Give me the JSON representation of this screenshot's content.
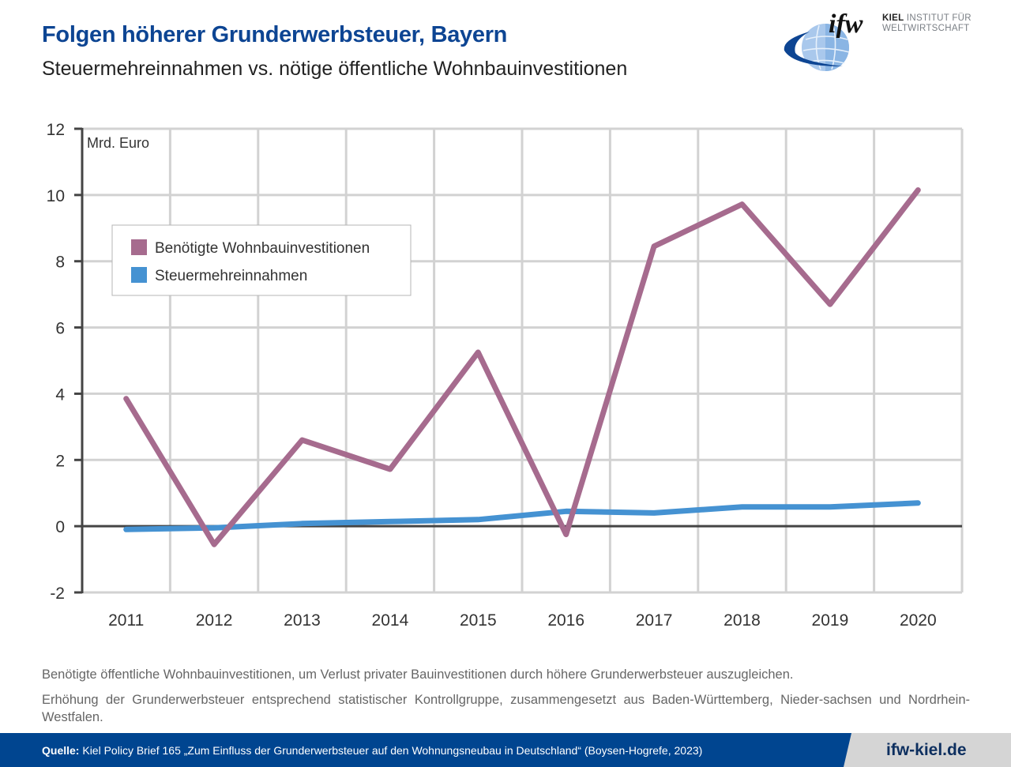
{
  "header": {
    "title": "Folgen höherer Grunderwerbsteuer, Bayern",
    "subtitle": "Steuermehreinnahmen vs. nötige öffentliche Wohnbauinvestitionen"
  },
  "logo": {
    "mark": "ifw",
    "line1_bold": "KIEL",
    "line1_rest": " INSTITUT FÜR",
    "line2": "WELTWIRTSCHAFT"
  },
  "chart_data": {
    "type": "line",
    "title": "Folgen höherer Grunderwerbsteuer, Bayern",
    "subtitle": "Steuermehreinnahmen vs. nötige öffentliche Wohnbauinvestitionen",
    "ylabel": "Mrd. Euro",
    "xlabel": "",
    "x": [
      "2011",
      "2012",
      "2013",
      "2014",
      "2015",
      "2016",
      "2017",
      "2018",
      "2019",
      "2020"
    ],
    "ylim": [
      -2,
      12
    ],
    "yticks": [
      -2,
      0,
      2,
      4,
      6,
      8,
      10,
      12
    ],
    "grid": true,
    "legend_position": "top-left",
    "series": [
      {
        "name": "Benötigte Wohnbauinvestitionen",
        "color": "#a66b8e",
        "values": [
          3.85,
          -0.55,
          2.6,
          1.72,
          5.25,
          -0.25,
          8.45,
          9.72,
          6.7,
          10.15
        ]
      },
      {
        "name": "Steuermehreinnahmen",
        "color": "#4592d2",
        "values": [
          -0.1,
          -0.05,
          0.08,
          0.14,
          0.2,
          0.45,
          0.4,
          0.58,
          0.58,
          0.7
        ]
      }
    ]
  },
  "notes": [
    "Benötigte öffentliche Wohnbauinvestitionen, um Verlust privater Bauinvestitionen durch höhere Grunderwerbsteuer auszugleichen.",
    "Erhöhung der Grunderwerbsteuer entsprechend statistischer Kontrollgruppe, zusammengesetzt aus Baden-Württemberg, Nieder-sachsen und Nordrhein-Westfalen."
  ],
  "footer": {
    "source_label": "Quelle:",
    "source_text": " Kiel Policy Brief 165 „Zum Einfluss der Grunderwerbsteuer auf den Wohnungsneubau in Deutschland“ (Boysen-Hogrefe, 2023)",
    "url": "ifw-kiel.de"
  }
}
